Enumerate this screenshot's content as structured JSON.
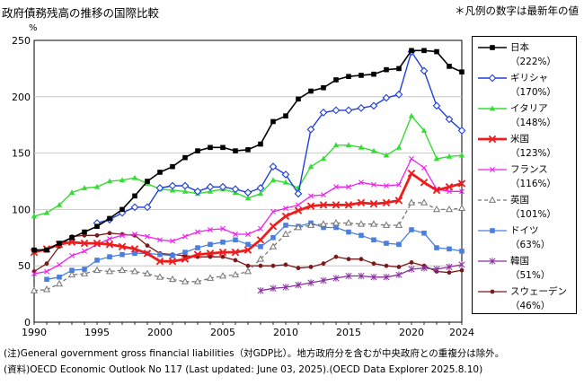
{
  "header": {
    "title": "政府債務残高の推移の国際比較",
    "note": "＊凡例の数字は最新年の値"
  },
  "footer": {
    "line1": "(注)General government gross financial liabilities（対GDP比）。地方政府分を含むが中央政府との重複分は除外。",
    "line2": "(資料)OECD Economic Outlook No 117 (Last updated: June 03, 2025).(OECD Data Explorer 2025.8.10)"
  },
  "chart_data": {
    "type": "line",
    "title": "政府債務残高の推移の国際比較",
    "ylabel": "%",
    "xlabel": "",
    "xlim": [
      1990,
      2024
    ],
    "ylim": [
      0,
      250
    ],
    "x_ticks": [
      1990,
      1995,
      2000,
      2005,
      2010,
      2015,
      2020,
      2024
    ],
    "y_ticks": [
      0,
      50,
      100,
      150,
      200,
      250
    ],
    "grid": true,
    "legend_position": "right",
    "series": [
      {
        "name": "日本",
        "latest_label": "（222%）",
        "color": "#000000",
        "style": "solid",
        "marker": "square",
        "width": 1.6,
        "x": [
          1990,
          1991,
          1992,
          1993,
          1994,
          1995,
          1996,
          1997,
          1998,
          1999,
          2000,
          2001,
          2002,
          2003,
          2004,
          2005,
          2006,
          2007,
          2008,
          2009,
          2010,
          2011,
          2012,
          2013,
          2014,
          2015,
          2016,
          2017,
          2018,
          2019,
          2020,
          2021,
          2022,
          2023,
          2024
        ],
        "values": [
          64,
          64,
          70,
          75,
          80,
          85,
          92,
          100,
          112,
          125,
          133,
          138,
          146,
          152,
          155,
          155,
          152,
          153,
          158,
          178,
          183,
          198,
          205,
          208,
          215,
          218,
          219,
          220,
          224,
          225,
          241,
          241,
          240,
          227,
          222
        ]
      },
      {
        "name": "ギリシャ",
        "latest_label": "（170%）",
        "color": "#1f3fdc",
        "style": "solid",
        "marker": "diamond-open",
        "width": 1.4,
        "x": [
          1995,
          1996,
          1997,
          1998,
          1999,
          2000,
          2001,
          2002,
          2003,
          2004,
          2005,
          2006,
          2007,
          2008,
          2009,
          2010,
          2011,
          2012,
          2013,
          2014,
          2015,
          2016,
          2017,
          2018,
          2019,
          2020,
          2021,
          2022,
          2023,
          2024
        ],
        "values": [
          88,
          91,
          97,
          102,
          102,
          119,
          121,
          121,
          116,
          120,
          120,
          118,
          115,
          119,
          138,
          131,
          114,
          171,
          186,
          188,
          188,
          190,
          192,
          199,
          202,
          240,
          223,
          192,
          180,
          170
        ]
      },
      {
        "name": "イタリア",
        "latest_label": "（148%）",
        "color": "#33dd33",
        "style": "solid",
        "marker": "triangle",
        "width": 1.4,
        "x": [
          1990,
          1991,
          1992,
          1993,
          1994,
          1995,
          1996,
          1997,
          1998,
          1999,
          2000,
          2001,
          2002,
          2003,
          2004,
          2005,
          2006,
          2007,
          2008,
          2009,
          2010,
          2011,
          2012,
          2013,
          2014,
          2015,
          2016,
          2017,
          2018,
          2019,
          2020,
          2021,
          2022,
          2023,
          2024
        ],
        "values": [
          94,
          97,
          104,
          115,
          119,
          120,
          125,
          126,
          128,
          123,
          118,
          117,
          116,
          114,
          116,
          118,
          115,
          110,
          114,
          126,
          124,
          119,
          138,
          145,
          157,
          157,
          155,
          152,
          148,
          155,
          183,
          170,
          145,
          147,
          148
        ]
      },
      {
        "name": "米国",
        "latest_label": "（123%）",
        "color": "#ee1c1c",
        "style": "solid",
        "marker": "x",
        "width": 2.8,
        "x": [
          1990,
          1991,
          1992,
          1993,
          1994,
          1995,
          1996,
          1997,
          1998,
          1999,
          2000,
          2001,
          2002,
          2003,
          2004,
          2005,
          2006,
          2007,
          2008,
          2009,
          2010,
          2011,
          2012,
          2013,
          2014,
          2015,
          2016,
          2017,
          2018,
          2019,
          2020,
          2021,
          2022,
          2023,
          2024
        ],
        "values": [
          62,
          65,
          69,
          71,
          70,
          70,
          69,
          67,
          65,
          61,
          54,
          54,
          56,
          60,
          61,
          62,
          62,
          64,
          73,
          85,
          94,
          99,
          103,
          104,
          104,
          104,
          106,
          105,
          106,
          108,
          132,
          124,
          117,
          120,
          123
        ]
      },
      {
        "name": "フランス",
        "latest_label": "（116%）",
        "color": "#ee22ee",
        "style": "solid",
        "marker": "x-small",
        "width": 1.3,
        "x": [
          1990,
          1991,
          1992,
          1993,
          1994,
          1995,
          1996,
          1997,
          1998,
          1999,
          2000,
          2001,
          2002,
          2003,
          2004,
          2005,
          2006,
          2007,
          2008,
          2009,
          2010,
          2011,
          2012,
          2013,
          2014,
          2015,
          2016,
          2017,
          2018,
          2019,
          2020,
          2021,
          2022,
          2023,
          2024
        ],
        "values": [
          43,
          45,
          51,
          59,
          63,
          69,
          74,
          77,
          78,
          76,
          73,
          72,
          76,
          80,
          82,
          83,
          78,
          78,
          83,
          98,
          101,
          104,
          112,
          113,
          120,
          120,
          124,
          122,
          121,
          122,
          145,
          137,
          118,
          116,
          116
        ]
      },
      {
        "name": "英国",
        "latest_label": "（101%）",
        "color": "#777777",
        "style": "dashed",
        "marker": "triangle-open",
        "width": 1.3,
        "x": [
          1990,
          1991,
          1992,
          1993,
          1994,
          1995,
          1996,
          1997,
          1998,
          1999,
          2000,
          2001,
          2002,
          2003,
          2004,
          2005,
          2006,
          2007,
          2008,
          2009,
          2010,
          2011,
          2012,
          2013,
          2014,
          2015,
          2016,
          2017,
          2018,
          2019,
          2020,
          2021,
          2022,
          2023,
          2024
        ],
        "values": [
          28,
          29,
          34,
          42,
          43,
          46,
          45,
          46,
          45,
          43,
          40,
          38,
          36,
          36,
          39,
          41,
          42,
          45,
          56,
          67,
          78,
          84,
          86,
          87,
          88,
          88,
          87,
          87,
          86,
          86,
          106,
          106,
          100,
          100,
          101
        ]
      },
      {
        "name": "ドイツ",
        "latest_label": "（63%）",
        "color": "#4a7fe0",
        "style": "solid",
        "marker": "square",
        "width": 1.3,
        "x": [
          1991,
          1992,
          1993,
          1994,
          1995,
          1996,
          1997,
          1998,
          1999,
          2000,
          2001,
          2002,
          2003,
          2004,
          2005,
          2006,
          2007,
          2008,
          2009,
          2010,
          2011,
          2012,
          2013,
          2014,
          2015,
          2016,
          2017,
          2018,
          2019,
          2020,
          2021,
          2022,
          2023,
          2024
        ],
        "values": [
          38,
          40,
          46,
          47,
          55,
          58,
          60,
          61,
          61,
          60,
          59,
          62,
          66,
          69,
          71,
          73,
          69,
          67,
          75,
          86,
          85,
          88,
          84,
          84,
          80,
          77,
          73,
          70,
          69,
          82,
          79,
          66,
          65,
          63
        ]
      },
      {
        "name": "韓国",
        "latest_label": "（51%）",
        "color": "#8a2f9f",
        "style": "solid",
        "marker": "asterisk",
        "width": 1.3,
        "x": [
          2008,
          2009,
          2010,
          2011,
          2012,
          2013,
          2014,
          2015,
          2016,
          2017,
          2018,
          2019,
          2020,
          2021,
          2022,
          2023,
          2024
        ],
        "values": [
          28,
          30,
          31,
          33,
          35,
          37,
          39,
          41,
          41,
          40,
          40,
          42,
          47,
          48,
          47,
          49,
          51
        ]
      },
      {
        "name": "スウェーデン",
        "latest_label": "（46%）",
        "color": "#7a1a1a",
        "style": "solid",
        "marker": "circle",
        "width": 1.3,
        "x": [
          1990,
          1991,
          1992,
          1993,
          1994,
          1995,
          1996,
          1997,
          1998,
          1999,
          2000,
          2001,
          2002,
          2003,
          2004,
          2005,
          2006,
          2007,
          2008,
          2009,
          2010,
          2011,
          2012,
          2013,
          2014,
          2015,
          2016,
          2017,
          2018,
          2019,
          2020,
          2021,
          2022,
          2023,
          2024
        ],
        "values": [
          45,
          52,
          67,
          76,
          77,
          77,
          79,
          78,
          77,
          68,
          61,
          60,
          59,
          58,
          58,
          58,
          55,
          50,
          50,
          50,
          51,
          48,
          49,
          52,
          58,
          56,
          56,
          52,
          50,
          49,
          53,
          50,
          45,
          44,
          46
        ]
      }
    ]
  }
}
